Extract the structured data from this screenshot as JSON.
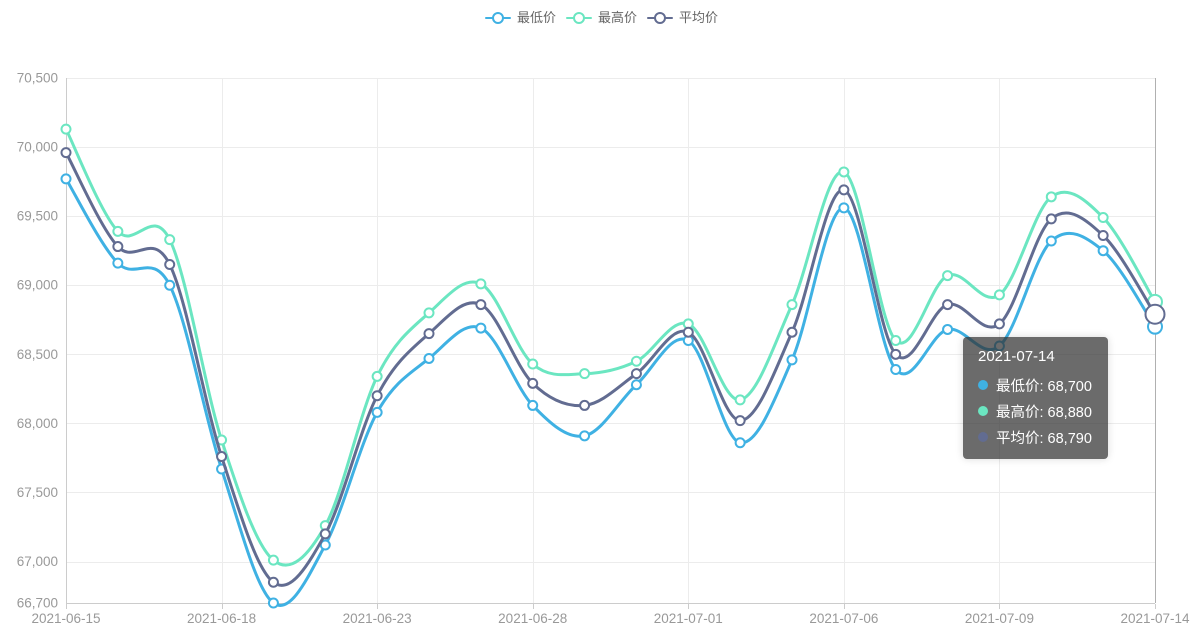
{
  "chart_data": {
    "type": "line",
    "title": "",
    "smooth": true,
    "grid": true,
    "legend_position": "top",
    "x": [
      "2021-06-15",
      "2021-06-16",
      "2021-06-17",
      "2021-06-18",
      "2021-06-21",
      "2021-06-22",
      "2021-06-23",
      "2021-06-24",
      "2021-06-25",
      "2021-06-28",
      "2021-06-29",
      "2021-06-30",
      "2021-07-01",
      "2021-07-02",
      "2021-07-05",
      "2021-07-06",
      "2021-07-07",
      "2021-07-08",
      "2021-07-09",
      "2021-07-12",
      "2021-07-13",
      "2021-07-14"
    ],
    "x_tick_indices": [
      0,
      3,
      6,
      9,
      12,
      15,
      18,
      21
    ],
    "x_tick_labels": [
      "2021-06-15",
      "2021-06-18",
      "2021-06-23",
      "2021-06-28",
      "2021-07-01",
      "2021-07-06",
      "2021-07-09",
      "2021-07-14"
    ],
    "ylim": [
      66700,
      70500
    ],
    "y_ticks": [
      66700,
      67000,
      67500,
      68000,
      68500,
      69000,
      69500,
      70000,
      70500
    ],
    "y_tick_labels": [
      "66,700",
      "67,000",
      "67,500",
      "68,000",
      "68,500",
      "69,000",
      "69,500",
      "70,000",
      "70,500"
    ],
    "series": [
      {
        "id": "low",
        "name": "最低价",
        "color": "#3fb1e3",
        "values": [
          69770,
          69160,
          69000,
          67670,
          66700,
          67120,
          68080,
          68470,
          68690,
          68130,
          67910,
          68280,
          68600,
          67860,
          68460,
          69560,
          68390,
          68680,
          68560,
          69320,
          69250,
          68700
        ]
      },
      {
        "id": "high",
        "name": "最高价",
        "color": "#6be6c1",
        "values": [
          70130,
          69390,
          69330,
          67880,
          67010,
          67260,
          68340,
          68800,
          69010,
          68430,
          68360,
          68450,
          68720,
          68170,
          68860,
          69820,
          68600,
          69070,
          68930,
          69640,
          69490,
          68880
        ]
      },
      {
        "id": "avg",
        "name": "平均价",
        "color": "#626c91",
        "values": [
          69960,
          69280,
          69150,
          67760,
          66850,
          67200,
          68200,
          68650,
          68860,
          68290,
          68130,
          68360,
          68660,
          68020,
          68660,
          69690,
          68500,
          68860,
          68720,
          69480,
          69360,
          68790
        ]
      }
    ],
    "hover_index": 21
  },
  "legend": {
    "items": [
      {
        "id": "low",
        "label": "最低价",
        "color": "#3fb1e3"
      },
      {
        "id": "high",
        "label": "最高价",
        "color": "#6be6c1"
      },
      {
        "id": "avg",
        "label": "平均价",
        "color": "#626c91"
      }
    ]
  },
  "tooltip": {
    "title": "2021-07-14",
    "rows": [
      {
        "id": "low",
        "label": "最低价",
        "value": "68,700",
        "color": "#3fb1e3"
      },
      {
        "id": "high",
        "label": "最高价",
        "value": "68,880",
        "color": "#6be6c1"
      },
      {
        "id": "avg",
        "label": "平均价",
        "value": "68,790",
        "color": "#626c91"
      }
    ]
  },
  "colors": {
    "low": "#3fb1e3",
    "high": "#6be6c1",
    "avg": "#626c91",
    "axis_label": "#999999",
    "axis_line": "#cccccc",
    "grid_line": "#ececec",
    "legend_text": "#666666",
    "axis_pointer": "#b0b0b0",
    "tooltip_bg": "rgba(50,50,50,0.72)"
  }
}
